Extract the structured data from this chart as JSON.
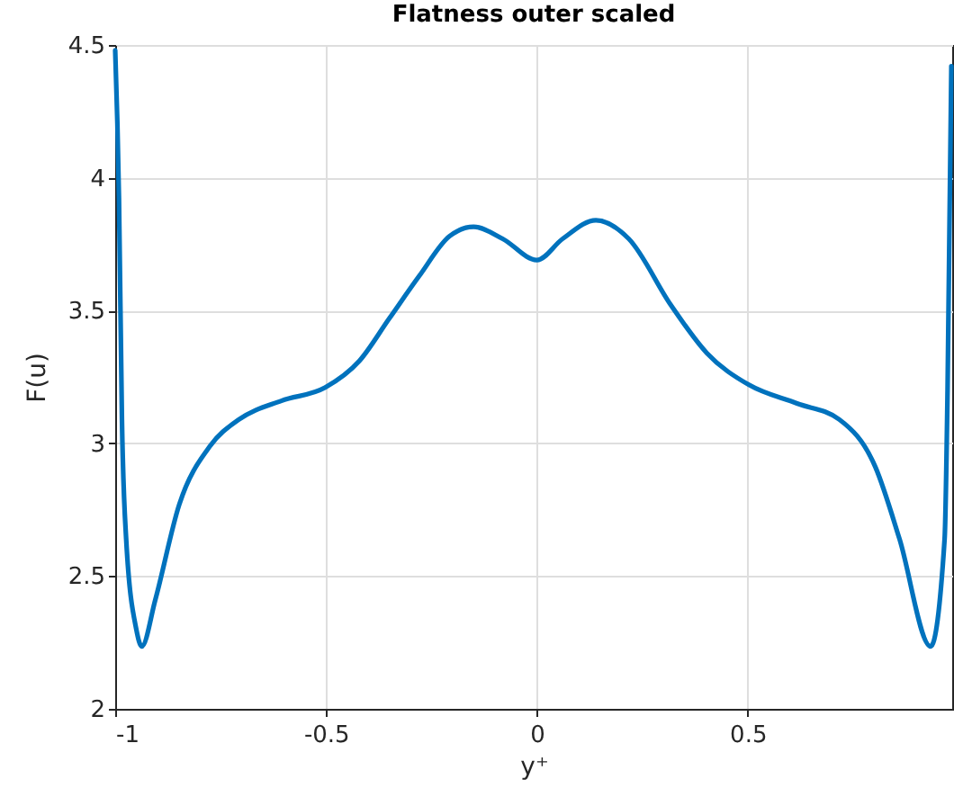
{
  "chart_data": {
    "type": "line",
    "title": "Flatness outer scaled",
    "xlabel": "y⁺",
    "ylabel": "F(u)",
    "x": [
      -1,
      -0.991,
      -0.984,
      -0.974,
      -0.95,
      -0.937,
      -0.905,
      -0.848,
      -0.775,
      -0.706,
      -0.606,
      -0.502,
      -0.421,
      -0.35,
      -0.279,
      -0.207,
      -0.15,
      -0.081,
      0,
      0.061,
      0.14,
      0.218,
      0.318,
      0.403,
      0.503,
      0.617,
      0.717,
      0.803,
      0.86,
      0.934,
      0.967,
      0.974,
      0.983
    ],
    "series": [
      {
        "color": "#0072bd",
        "values": [
          4.48,
          3.92,
          3.09,
          2.64,
          2.3,
          2.235,
          2.41,
          2.77,
          2.99,
          3.09,
          3.16,
          3.21,
          3.31,
          3.47,
          3.63,
          3.78,
          3.815,
          3.77,
          3.69,
          3.77,
          3.84,
          3.77,
          3.52,
          3.34,
          3.22,
          3.15,
          3.09,
          2.91,
          2.64,
          2.235,
          2.64,
          3.2,
          4.42
        ]
      }
    ],
    "xlim": [
      -1,
      0.985
    ],
    "ylim": [
      2,
      4.5
    ],
    "xticks": [
      -1,
      -0.5,
      0,
      0.5
    ],
    "yticks": [
      2,
      2.5,
      3,
      3.5,
      4,
      4.5
    ],
    "grid": true
  }
}
